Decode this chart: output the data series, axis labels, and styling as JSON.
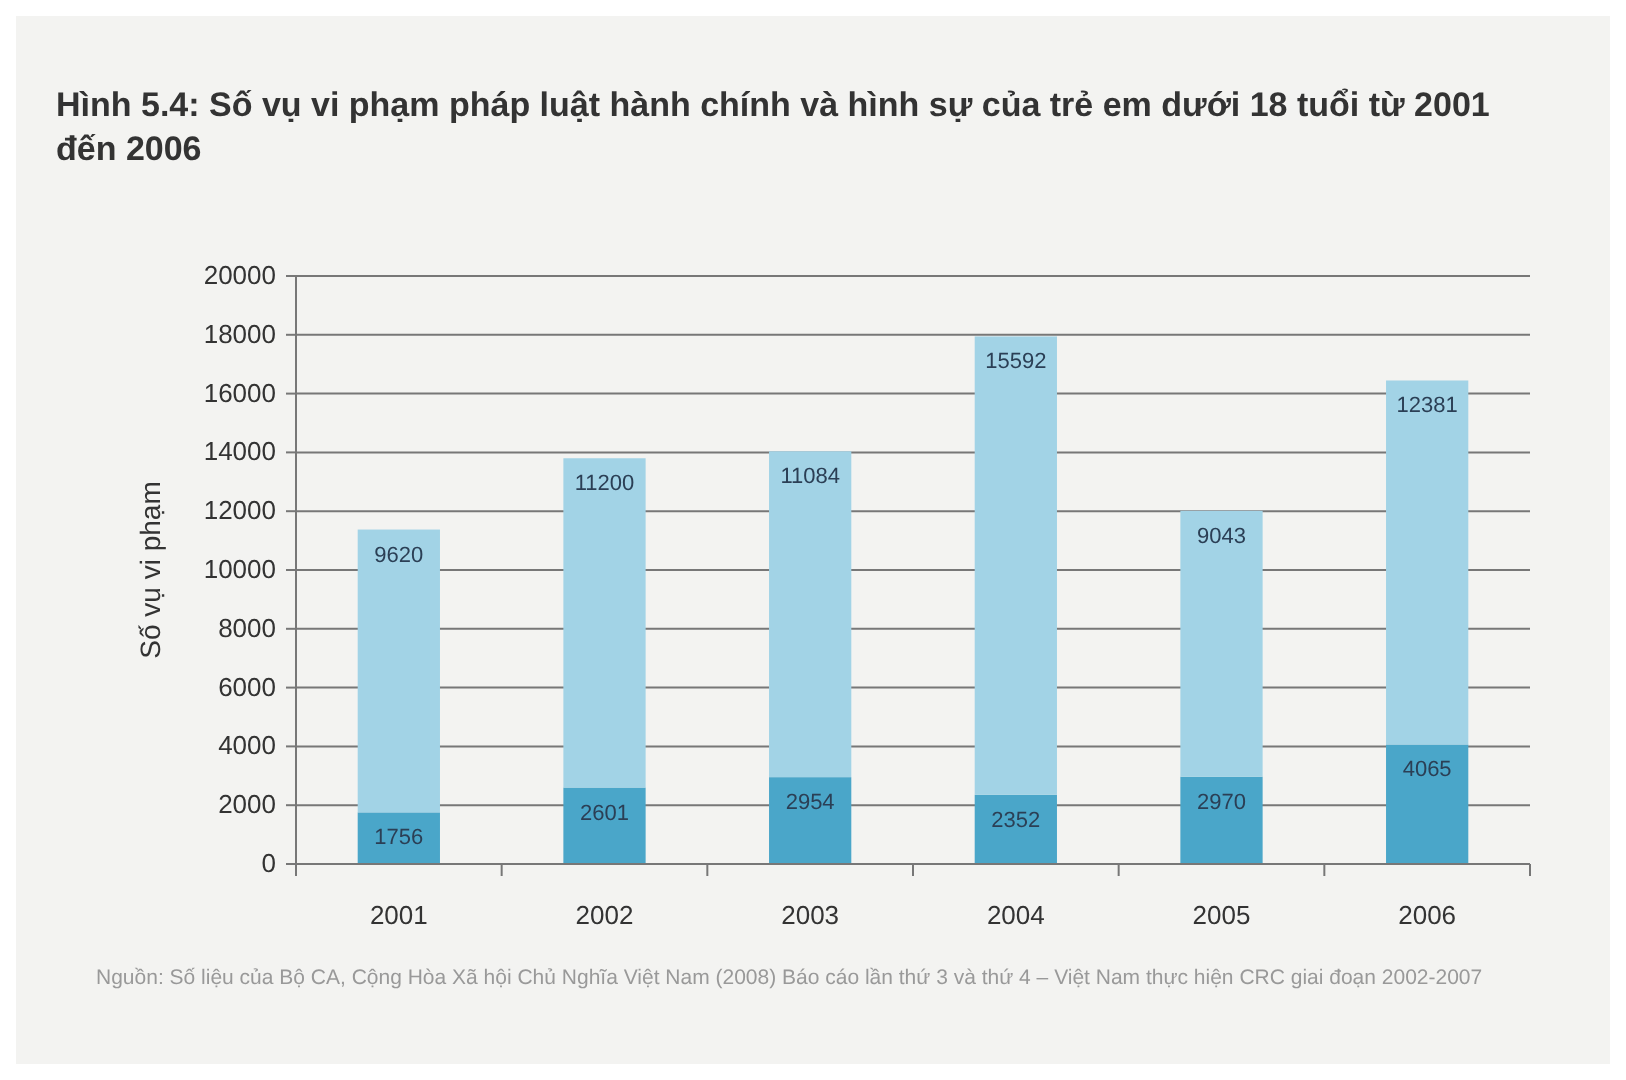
{
  "chart_data": {
    "type": "bar",
    "title": "Hình 5.4: Số vụ vi phạm pháp luật hành chính và hình sự của trẻ em dưới 18 tuổi từ 2001 đến 2006",
    "ylabel": "Số vụ vi phạm",
    "categories": [
      "2001",
      "2002",
      "2003",
      "2004",
      "2005",
      "2006"
    ],
    "series": [
      {
        "color": "#4aa6c9",
        "values": [
          1756,
          2601,
          2954,
          2352,
          2970,
          4065
        ]
      },
      {
        "color": "#a2d3e6",
        "values": [
          9620,
          11200,
          11084,
          15592,
          9043,
          12381
        ]
      }
    ],
    "stacked": true,
    "data_labels": true,
    "ylim": [
      0,
      20000
    ],
    "yticks": [
      0,
      2000,
      4000,
      6000,
      8000,
      10000,
      12000,
      14000,
      16000,
      18000,
      20000
    ],
    "grid": "y",
    "annotations": [
      "Nguồn: Số liệu của Bộ CA, Cộng Hòa Xã hội Chủ Nghĩa Việt Nam (2008) Báo cáo lần thứ 3 và thứ 4 – Việt Nam thực hiện CRC giai đoạn 2002-2007"
    ]
  }
}
